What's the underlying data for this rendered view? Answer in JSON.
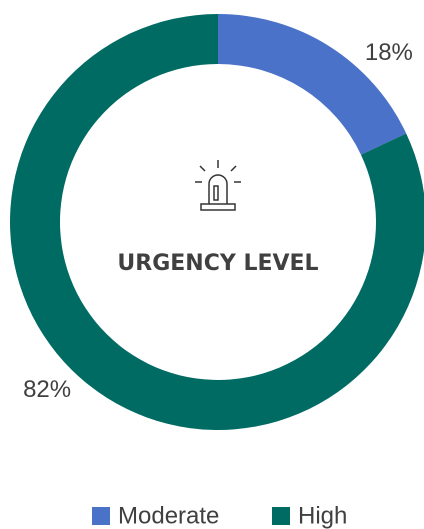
{
  "chart_data": {
    "type": "donut",
    "center_label": "URGENCY LEVEL",
    "categories": [
      "Moderate",
      "High"
    ],
    "values": [
      18,
      82
    ],
    "value_labels": [
      "18%",
      "82%"
    ],
    "colors": [
      "#4a72c8",
      "#006b63"
    ],
    "legend": "bottom"
  }
}
